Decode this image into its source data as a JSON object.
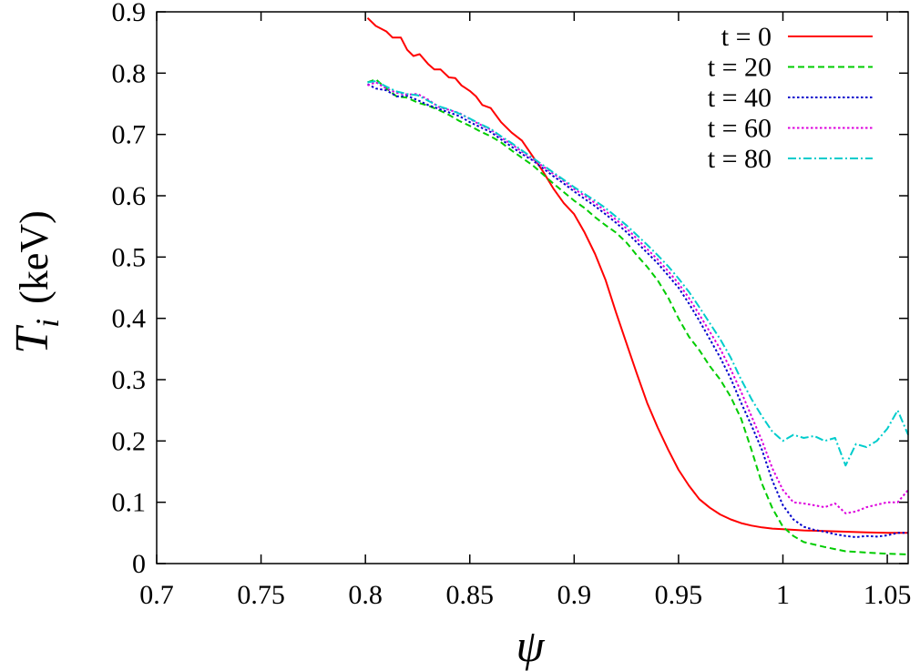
{
  "chart_data": {
    "type": "line",
    "xlabel": "ψ",
    "ylabel_main": "T",
    "ylabel_sub": "i",
    "ylabel_unit": "(keV)",
    "xlim": [
      0.7,
      1.06
    ],
    "ylim": [
      0,
      0.9
    ],
    "xticks": [
      0.7,
      0.75,
      0.8,
      0.85,
      0.9,
      0.95,
      1.0,
      1.05
    ],
    "xtick_labels": [
      "0.7",
      "0.75",
      "0.8",
      "0.85",
      "0.9",
      "0.95",
      "1",
      "1.05"
    ],
    "yticks": [
      0,
      0.1,
      0.2,
      0.3,
      0.4,
      0.5,
      0.6,
      0.7,
      0.8,
      0.9
    ],
    "ytick_labels": [
      "0",
      "0.1",
      "0.2",
      "0.3",
      "0.4",
      "0.5",
      "0.6",
      "0.7",
      "0.8",
      "0.9"
    ],
    "grid": false,
    "legend_position": "top-right",
    "series": [
      {
        "name": "t = 0",
        "color": "#ff0000",
        "dash": "solid",
        "x": [
          0.801,
          0.805,
          0.81,
          0.813,
          0.817,
          0.82,
          0.823,
          0.826,
          0.83,
          0.833,
          0.836,
          0.84,
          0.843,
          0.846,
          0.85,
          0.853,
          0.856,
          0.86,
          0.865,
          0.87,
          0.875,
          0.88,
          0.885,
          0.89,
          0.895,
          0.9,
          0.905,
          0.91,
          0.915,
          0.92,
          0.925,
          0.93,
          0.935,
          0.94,
          0.945,
          0.95,
          0.955,
          0.96,
          0.965,
          0.97,
          0.975,
          0.98,
          0.985,
          0.99,
          0.995,
          1.0,
          1.01,
          1.02,
          1.03,
          1.04,
          1.05,
          1.06
        ],
        "y": [
          0.89,
          0.877,
          0.868,
          0.858,
          0.858,
          0.838,
          0.828,
          0.831,
          0.815,
          0.806,
          0.806,
          0.793,
          0.792,
          0.78,
          0.771,
          0.762,
          0.748,
          0.743,
          0.72,
          0.703,
          0.69,
          0.665,
          0.64,
          0.612,
          0.588,
          0.57,
          0.54,
          0.505,
          0.463,
          0.41,
          0.36,
          0.31,
          0.262,
          0.222,
          0.186,
          0.153,
          0.127,
          0.105,
          0.091,
          0.08,
          0.072,
          0.066,
          0.062,
          0.059,
          0.057,
          0.056,
          0.054,
          0.053,
          0.052,
          0.051,
          0.05,
          0.05
        ]
      },
      {
        "name": "t = 20",
        "color": "#00cc00",
        "dash": "dashed",
        "x": [
          0.801,
          0.805,
          0.81,
          0.815,
          0.82,
          0.825,
          0.83,
          0.835,
          0.84,
          0.845,
          0.85,
          0.855,
          0.86,
          0.865,
          0.87,
          0.875,
          0.88,
          0.885,
          0.89,
          0.895,
          0.9,
          0.905,
          0.91,
          0.915,
          0.92,
          0.925,
          0.93,
          0.935,
          0.94,
          0.945,
          0.95,
          0.955,
          0.96,
          0.965,
          0.97,
          0.975,
          0.98,
          0.985,
          0.99,
          0.995,
          1.0,
          1.005,
          1.01,
          1.02,
          1.03,
          1.04,
          1.05,
          1.06
        ],
        "y": [
          0.785,
          0.79,
          0.775,
          0.762,
          0.76,
          0.752,
          0.747,
          0.74,
          0.732,
          0.722,
          0.714,
          0.705,
          0.697,
          0.687,
          0.674,
          0.662,
          0.65,
          0.635,
          0.62,
          0.606,
          0.592,
          0.58,
          0.565,
          0.552,
          0.54,
          0.524,
          0.503,
          0.484,
          0.462,
          0.434,
          0.4,
          0.37,
          0.348,
          0.322,
          0.3,
          0.272,
          0.236,
          0.185,
          0.13,
          0.09,
          0.06,
          0.045,
          0.035,
          0.027,
          0.02,
          0.018,
          0.016,
          0.015
        ]
      },
      {
        "name": "t = 40",
        "color": "#0000cc",
        "dash": "dotted",
        "x": [
          0.801,
          0.805,
          0.81,
          0.815,
          0.82,
          0.825,
          0.83,
          0.835,
          0.84,
          0.845,
          0.85,
          0.855,
          0.86,
          0.865,
          0.87,
          0.875,
          0.88,
          0.885,
          0.89,
          0.895,
          0.9,
          0.905,
          0.91,
          0.915,
          0.92,
          0.925,
          0.93,
          0.935,
          0.94,
          0.945,
          0.95,
          0.955,
          0.96,
          0.965,
          0.97,
          0.975,
          0.98,
          0.985,
          0.99,
          0.995,
          1.0,
          1.005,
          1.01,
          1.015,
          1.02,
          1.025,
          1.03,
          1.035,
          1.04,
          1.045,
          1.05,
          1.055,
          1.06
        ],
        "y": [
          0.782,
          0.775,
          0.772,
          0.762,
          0.763,
          0.756,
          0.748,
          0.742,
          0.736,
          0.73,
          0.72,
          0.712,
          0.704,
          0.692,
          0.68,
          0.668,
          0.658,
          0.645,
          0.632,
          0.62,
          0.607,
          0.595,
          0.583,
          0.57,
          0.556,
          0.541,
          0.524,
          0.507,
          0.49,
          0.47,
          0.45,
          0.424,
          0.396,
          0.366,
          0.336,
          0.302,
          0.262,
          0.225,
          0.185,
          0.135,
          0.095,
          0.072,
          0.06,
          0.055,
          0.052,
          0.048,
          0.045,
          0.043,
          0.045,
          0.044,
          0.046,
          0.05,
          0.05
        ]
      },
      {
        "name": "t = 60",
        "color": "#dd00dd",
        "dash": "dotted",
        "x": [
          0.801,
          0.805,
          0.81,
          0.815,
          0.82,
          0.825,
          0.83,
          0.835,
          0.84,
          0.845,
          0.85,
          0.855,
          0.86,
          0.865,
          0.87,
          0.875,
          0.88,
          0.885,
          0.89,
          0.895,
          0.9,
          0.905,
          0.91,
          0.915,
          0.92,
          0.925,
          0.93,
          0.935,
          0.94,
          0.945,
          0.95,
          0.955,
          0.96,
          0.965,
          0.97,
          0.975,
          0.98,
          0.985,
          0.99,
          0.995,
          1.0,
          1.005,
          1.01,
          1.015,
          1.02,
          1.025,
          1.03,
          1.035,
          1.04,
          1.045,
          1.05,
          1.055,
          1.06
        ],
        "y": [
          0.78,
          0.785,
          0.775,
          0.768,
          0.765,
          0.766,
          0.757,
          0.745,
          0.74,
          0.735,
          0.725,
          0.716,
          0.708,
          0.695,
          0.684,
          0.672,
          0.66,
          0.648,
          0.636,
          0.624,
          0.611,
          0.6,
          0.588,
          0.575,
          0.561,
          0.547,
          0.53,
          0.513,
          0.496,
          0.477,
          0.457,
          0.433,
          0.406,
          0.378,
          0.35,
          0.317,
          0.28,
          0.24,
          0.2,
          0.155,
          0.12,
          0.1,
          0.098,
          0.095,
          0.092,
          0.098,
          0.082,
          0.085,
          0.092,
          0.096,
          0.1,
          0.1,
          0.12
        ]
      },
      {
        "name": "t = 80",
        "color": "#00cccc",
        "dash": "dash-dot",
        "x": [
          0.801,
          0.805,
          0.81,
          0.815,
          0.82,
          0.825,
          0.83,
          0.835,
          0.84,
          0.845,
          0.85,
          0.855,
          0.86,
          0.865,
          0.87,
          0.875,
          0.88,
          0.885,
          0.89,
          0.895,
          0.9,
          0.905,
          0.91,
          0.915,
          0.92,
          0.925,
          0.93,
          0.935,
          0.94,
          0.945,
          0.95,
          0.955,
          0.96,
          0.965,
          0.97,
          0.975,
          0.98,
          0.985,
          0.99,
          0.995,
          1.0,
          1.005,
          1.01,
          1.015,
          1.02,
          1.025,
          1.03,
          1.035,
          1.04,
          1.045,
          1.05,
          1.055,
          1.06
        ],
        "y": [
          0.785,
          0.787,
          0.778,
          0.77,
          0.766,
          0.764,
          0.755,
          0.746,
          0.741,
          0.734,
          0.726,
          0.717,
          0.709,
          0.697,
          0.686,
          0.674,
          0.662,
          0.65,
          0.638,
          0.626,
          0.614,
          0.603,
          0.592,
          0.58,
          0.566,
          0.552,
          0.536,
          0.52,
          0.503,
          0.485,
          0.465,
          0.443,
          0.418,
          0.392,
          0.366,
          0.336,
          0.3,
          0.268,
          0.24,
          0.215,
          0.2,
          0.21,
          0.205,
          0.208,
          0.2,
          0.205,
          0.16,
          0.195,
          0.19,
          0.2,
          0.22,
          0.25,
          0.21
        ]
      }
    ]
  }
}
